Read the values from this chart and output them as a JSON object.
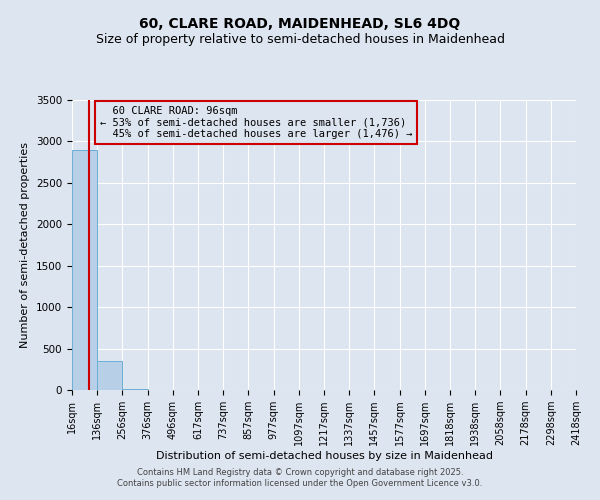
{
  "title": "60, CLARE ROAD, MAIDENHEAD, SL6 4DQ",
  "subtitle": "Size of property relative to semi-detached houses in Maidenhead",
  "xlabel": "Distribution of semi-detached houses by size in Maidenhead",
  "ylabel": "Number of semi-detached properties",
  "property_size": 96,
  "property_label": "60 CLARE ROAD: 96sqm",
  "pct_smaller": 53,
  "count_smaller": 1736,
  "pct_larger": 45,
  "count_larger": 1476,
  "bin_edges": [
    16,
    136,
    256,
    376,
    496,
    617,
    737,
    857,
    977,
    1097,
    1217,
    1337,
    1457,
    1577,
    1697,
    1818,
    1938,
    2058,
    2178,
    2298,
    2418
  ],
  "bin_counts": [
    2900,
    350,
    18,
    6,
    2,
    1,
    0,
    0,
    0,
    0,
    0,
    0,
    0,
    0,
    0,
    0,
    0,
    0,
    0,
    0
  ],
  "bar_facecolor": "#b8cfe8",
  "bar_edgecolor": "#6baed6",
  "vline_color": "#cc0000",
  "annotation_box_color": "#cc0000",
  "ylim": [
    0,
    3500
  ],
  "yticks": [
    0,
    500,
    1000,
    1500,
    2000,
    2500,
    3000,
    3500
  ],
  "background_color": "#dde5f0",
  "grid_color": "#ffffff",
  "footer_text": "Contains HM Land Registry data © Crown copyright and database right 2025.\nContains public sector information licensed under the Open Government Licence v3.0.",
  "title_fontsize": 10,
  "subtitle_fontsize": 9,
  "tick_label_fontsize": 7,
  "annotation_fontsize": 7.5,
  "ylabel_fontsize": 8,
  "xlabel_fontsize": 8
}
